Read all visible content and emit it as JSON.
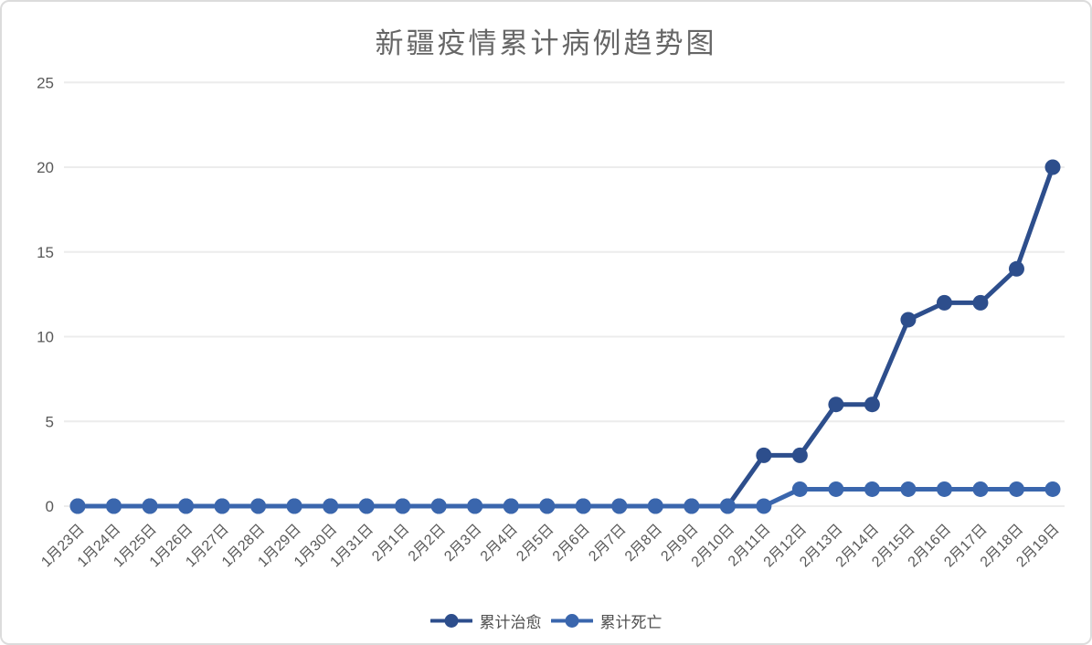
{
  "page": {
    "title": "新疆疫情累计病例趋势图"
  },
  "chart_data": {
    "type": "line",
    "title": "新疆疫情累计病例趋势图",
    "categories": [
      "1月23日",
      "1月24日",
      "1月25日",
      "1月26日",
      "1月27日",
      "1月28日",
      "1月29日",
      "1月30日",
      "1月31日",
      "2月1日",
      "2月2日",
      "2月3日",
      "2月4日",
      "2月5日",
      "2月6日",
      "2月7日",
      "2月8日",
      "2月9日",
      "2月10日",
      "2月11日",
      "2月12日",
      "2月13日",
      "2月14日",
      "2月15日",
      "2月16日",
      "2月17日",
      "2月18日",
      "2月19日"
    ],
    "series": [
      {
        "name": "累计治愈",
        "color": "#2d4e8c",
        "values": [
          0,
          0,
          0,
          0,
          0,
          0,
          0,
          0,
          0,
          0,
          0,
          0,
          0,
          0,
          0,
          0,
          0,
          0,
          0,
          3,
          3,
          6,
          6,
          11,
          12,
          12,
          14,
          20
        ]
      },
      {
        "name": "累计死亡",
        "color": "#3a66ad",
        "values": [
          0,
          0,
          0,
          0,
          0,
          0,
          0,
          0,
          0,
          0,
          0,
          0,
          0,
          0,
          0,
          0,
          0,
          0,
          0,
          0,
          1,
          1,
          1,
          1,
          1,
          1,
          1,
          1
        ]
      }
    ],
    "xlabel": "",
    "ylabel": "",
    "ylim": [
      0,
      25
    ],
    "yticks": [
      0,
      5,
      10,
      15,
      20,
      25
    ],
    "grid": true,
    "legend_position": "bottom"
  },
  "colors": {
    "grid": "#ececec",
    "tick_label": "#595959",
    "title": "#666666",
    "legend_label": "#4f4f4f",
    "border": "#dcdcdc",
    "background": "#ffffff"
  }
}
